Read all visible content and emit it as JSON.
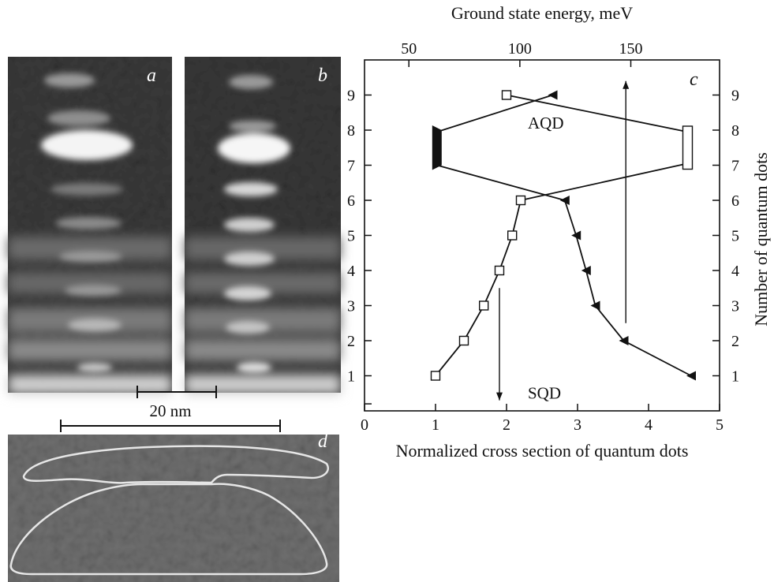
{
  "panels": {
    "a": {
      "letter": "a"
    },
    "b": {
      "letter": "b"
    },
    "c": {
      "letter": "c"
    },
    "d": {
      "letter": "d"
    }
  },
  "scale_bar": {
    "label": "20 nm"
  },
  "chart_data": {
    "type": "scatter",
    "xlabel": "Normalized cross section of quantum dots",
    "x2label": "Ground state energy, meV",
    "ylabel": "Number of quantum dots",
    "xlim": [
      0,
      5
    ],
    "ylim": [
      0,
      10
    ],
    "x2lim": [
      30,
      190
    ],
    "x_ticks": [
      0,
      1,
      2,
      3,
      4,
      5
    ],
    "x2_ticks": [
      50,
      100,
      150
    ],
    "y_ticks": [
      1,
      2,
      3,
      4,
      5,
      6,
      7,
      8,
      9
    ],
    "grid": false,
    "series": [
      {
        "name": "SQD",
        "marker": "open-square",
        "points": [
          [
            1.0,
            1
          ],
          [
            1.4,
            2
          ],
          [
            1.68,
            3
          ],
          [
            1.9,
            4
          ],
          [
            2.08,
            5
          ],
          [
            2.2,
            6
          ]
        ]
      },
      {
        "name": "",
        "marker": "filled-triangle",
        "points": [
          [
            4.6,
            1
          ],
          [
            3.65,
            2
          ],
          [
            3.25,
            3
          ],
          [
            3.12,
            4
          ],
          [
            2.98,
            5
          ],
          [
            2.82,
            6
          ]
        ]
      },
      {
        "name": "AQD",
        "marker": "open-square",
        "points": [
          [
            2.0,
            9
          ]
        ]
      },
      {
        "name": "",
        "marker": "filled-triangle",
        "points": [
          [
            2.65,
            9
          ]
        ]
      }
    ],
    "bars": [
      {
        "marker": "filled-bar",
        "x": 1.02,
        "y_from": 7,
        "y_to": 8
      },
      {
        "marker": "open-bar",
        "x": 4.55,
        "y_from": 7,
        "y_to": 8
      }
    ],
    "annotations": [
      {
        "text": "AQD",
        "x": 2.3,
        "y": 8.05
      },
      {
        "text": "SQD",
        "x": 2.3,
        "y": 0.35
      }
    ],
    "arrows": [
      {
        "x": 1.9,
        "y_from": 3.5,
        "y_to": 0.3,
        "direction": "down"
      },
      {
        "x": 3.68,
        "y_from": 2.5,
        "y_to": 9.4,
        "direction": "up"
      }
    ]
  }
}
